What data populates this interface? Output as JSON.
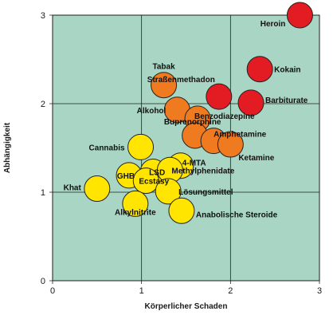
{
  "chart_data": {
    "type": "scatter",
    "xlabel": "Körperlicher Schaden",
    "ylabel": "Abhängigkeit",
    "xlim": [
      0,
      3
    ],
    "ylim": [
      0,
      3
    ],
    "xticks": [
      "0",
      "1",
      "2",
      "3"
    ],
    "yticks": [
      "0",
      "1",
      "2",
      "3"
    ],
    "grid": true,
    "colors": {
      "background": "#a9d6c4",
      "grid": "#1f1f1f",
      "red": "#e31b23",
      "orange": "#f07a20",
      "yellow": "#ffe500",
      "stroke": "#222222"
    },
    "points": [
      {
        "label": "Heroin",
        "x": 2.78,
        "y": 3.0,
        "color": "red"
      },
      {
        "label": "Kokain",
        "x": 2.33,
        "y": 2.39,
        "color": "red"
      },
      {
        "label": "Barbiturate",
        "x": 2.23,
        "y": 2.01,
        "color": "red"
      },
      {
        "label": "Straßenmethadon",
        "x": 1.87,
        "y": 2.08,
        "color": "red"
      },
      {
        "label": "Tabak",
        "x": 1.25,
        "y": 2.21,
        "color": "orange"
      },
      {
        "label": "Alkohol",
        "x": 1.4,
        "y": 1.93,
        "color": "orange"
      },
      {
        "label": "Benzodiazepine",
        "x": 1.63,
        "y": 1.83,
        "color": "orange"
      },
      {
        "label": "Buprenorphine",
        "x": 1.6,
        "y": 1.64,
        "color": "orange"
      },
      {
        "label": "Amphetamine",
        "x": 1.81,
        "y": 1.58,
        "color": "orange"
      },
      {
        "label": "Ketamine",
        "x": 2.0,
        "y": 1.54,
        "color": "orange"
      },
      {
        "label": "Cannabis",
        "x": 0.99,
        "y": 1.51,
        "color": "yellow"
      },
      {
        "label": "4-MTA",
        "x": 1.44,
        "y": 1.3,
        "color": "yellow"
      },
      {
        "label": "LSD",
        "x": 1.13,
        "y": 1.23,
        "color": "yellow"
      },
      {
        "label": "Methylphenidate",
        "x": 1.32,
        "y": 1.25,
        "color": "yellow"
      },
      {
        "label": "GHB",
        "x": 0.86,
        "y": 1.19,
        "color": "yellow"
      },
      {
        "label": "Ecstasy",
        "x": 1.05,
        "y": 1.13,
        "color": "yellow"
      },
      {
        "label": "Lösungsmittel",
        "x": 1.3,
        "y": 1.01,
        "color": "yellow"
      },
      {
        "label": "Khat",
        "x": 0.5,
        "y": 1.04,
        "color": "yellow"
      },
      {
        "label": "Alkylnitrite",
        "x": 0.93,
        "y": 0.87,
        "color": "yellow"
      },
      {
        "label": "Anabolische Steroide",
        "x": 1.45,
        "y": 0.79,
        "color": "yellow"
      }
    ]
  }
}
